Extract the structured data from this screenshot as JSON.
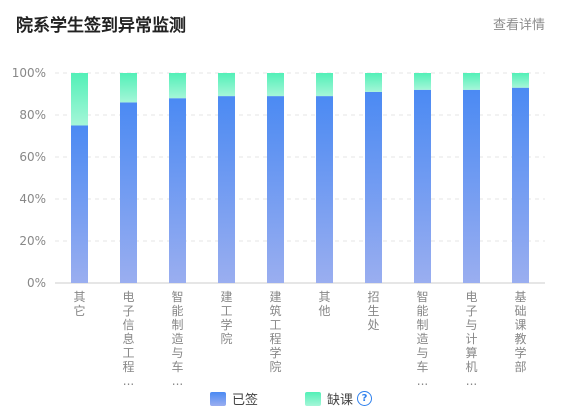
{
  "header": {
    "title": "院系学生签到异常监测",
    "detail_link": "查看详情"
  },
  "legend": {
    "present_label": "已签",
    "absent_label": "缺课",
    "help_icon": "?"
  },
  "colors": {
    "present_top": "#4b8af3",
    "present_bottom": "#9aaef0",
    "absent_top": "#52f0b7",
    "absent_bottom": "#a5f6d8",
    "help": "#2f80ed",
    "axis_text": "#888888"
  },
  "chart_data": {
    "type": "bar",
    "stacked": true,
    "categories": [
      "其它",
      "电子信息工程…",
      "智能制造与车…",
      "建工学院",
      "建筑工程学院",
      "其他",
      "招生处",
      "智能制造与车…",
      "电子与计算机…",
      "基础课教学部"
    ],
    "series": [
      {
        "name": "已签",
        "values": [
          75,
          86,
          88,
          89,
          89,
          89,
          91,
          92,
          92,
          93
        ]
      },
      {
        "name": "缺课",
        "values": [
          25,
          14,
          12,
          11,
          11,
          11,
          9,
          8,
          8,
          7
        ]
      }
    ],
    "yticks": [
      "0%",
      "20%",
      "40%",
      "60%",
      "80%",
      "100%"
    ],
    "ylim": [
      0,
      100
    ],
    "grid": true,
    "legend_position": "bottom"
  }
}
